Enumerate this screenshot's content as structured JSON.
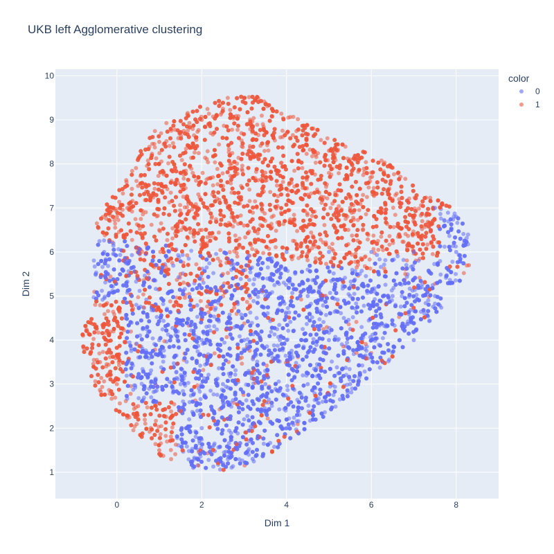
{
  "chart_data": {
    "type": "scatter",
    "title": "UKB left Agglomerative clustering",
    "xlabel": "Dim 1",
    "ylabel": "Dim 2",
    "xlim": [
      -1.45,
      9.0
    ],
    "ylim": [
      0.4,
      10.15
    ],
    "xticks": [
      0,
      2,
      4,
      6,
      8
    ],
    "yticks": [
      1,
      2,
      3,
      4,
      5,
      6,
      7,
      8,
      9,
      10
    ],
    "grid": true,
    "legend": {
      "title": "color",
      "position": "top-right",
      "entries": [
        {
          "label": "0",
          "color": "#636efa"
        },
        {
          "label": "1",
          "color": "#ef553b"
        }
      ]
    },
    "series": [
      {
        "name": "0",
        "color": "#636efa",
        "description_points": "dense point cloud occupying lower and right part of the embedding",
        "sample_points": [
          [
            1.8,
            1.1
          ],
          [
            2.5,
            1.2
          ],
          [
            3.2,
            1.3
          ],
          [
            2.0,
            2.0
          ],
          [
            3.0,
            2.2
          ],
          [
            4.0,
            2.0
          ],
          [
            1.5,
            3.0
          ],
          [
            2.5,
            3.0
          ],
          [
            3.5,
            3.0
          ],
          [
            4.5,
            3.0
          ],
          [
            5.5,
            3.0
          ],
          [
            1.0,
            4.0
          ],
          [
            2.0,
            4.0
          ],
          [
            3.0,
            4.0
          ],
          [
            4.0,
            4.0
          ],
          [
            5.0,
            4.0
          ],
          [
            6.0,
            4.0
          ],
          [
            7.0,
            4.0
          ],
          [
            3.5,
            5.0
          ],
          [
            4.5,
            5.0
          ],
          [
            5.5,
            5.0
          ],
          [
            6.5,
            5.0
          ],
          [
            7.5,
            5.0
          ],
          [
            4.0,
            6.0
          ],
          [
            5.0,
            6.0
          ],
          [
            6.0,
            6.0
          ],
          [
            7.0,
            6.0
          ],
          [
            8.0,
            6.0
          ],
          [
            7.5,
            7.0
          ],
          [
            8.0,
            6.8
          ],
          [
            -0.3,
            6.0
          ],
          [
            -0.5,
            5.5
          ],
          [
            0.2,
            4.5
          ]
        ]
      },
      {
        "name": "1",
        "color": "#ef553b",
        "description_points": "dense point cloud occupying upper part and left edge of the embedding",
        "sample_points": [
          [
            1.0,
            8.5
          ],
          [
            2.0,
            9.0
          ],
          [
            3.0,
            9.5
          ],
          [
            4.0,
            8.7
          ],
          [
            5.0,
            8.3
          ],
          [
            6.0,
            7.8
          ],
          [
            0.5,
            7.5
          ],
          [
            1.5,
            7.8
          ],
          [
            2.5,
            7.5
          ],
          [
            3.5,
            7.8
          ],
          [
            4.5,
            7.3
          ],
          [
            5.5,
            7.0
          ],
          [
            6.5,
            7.2
          ],
          [
            7.2,
            6.7
          ],
          [
            0.0,
            6.8
          ],
          [
            1.0,
            6.5
          ],
          [
            2.0,
            6.5
          ],
          [
            3.0,
            6.6
          ],
          [
            1.5,
            5.5
          ],
          [
            2.5,
            5.5
          ],
          [
            -0.7,
            4.2
          ],
          [
            -0.4,
            3.5
          ],
          [
            0.0,
            3.0
          ],
          [
            0.5,
            2.5
          ],
          [
            1.0,
            1.5
          ],
          [
            0.8,
            2.0
          ],
          [
            8.3,
            5.7
          ],
          [
            6.8,
            5.5
          ],
          [
            5.8,
            6.5
          ]
        ]
      }
    ]
  }
}
